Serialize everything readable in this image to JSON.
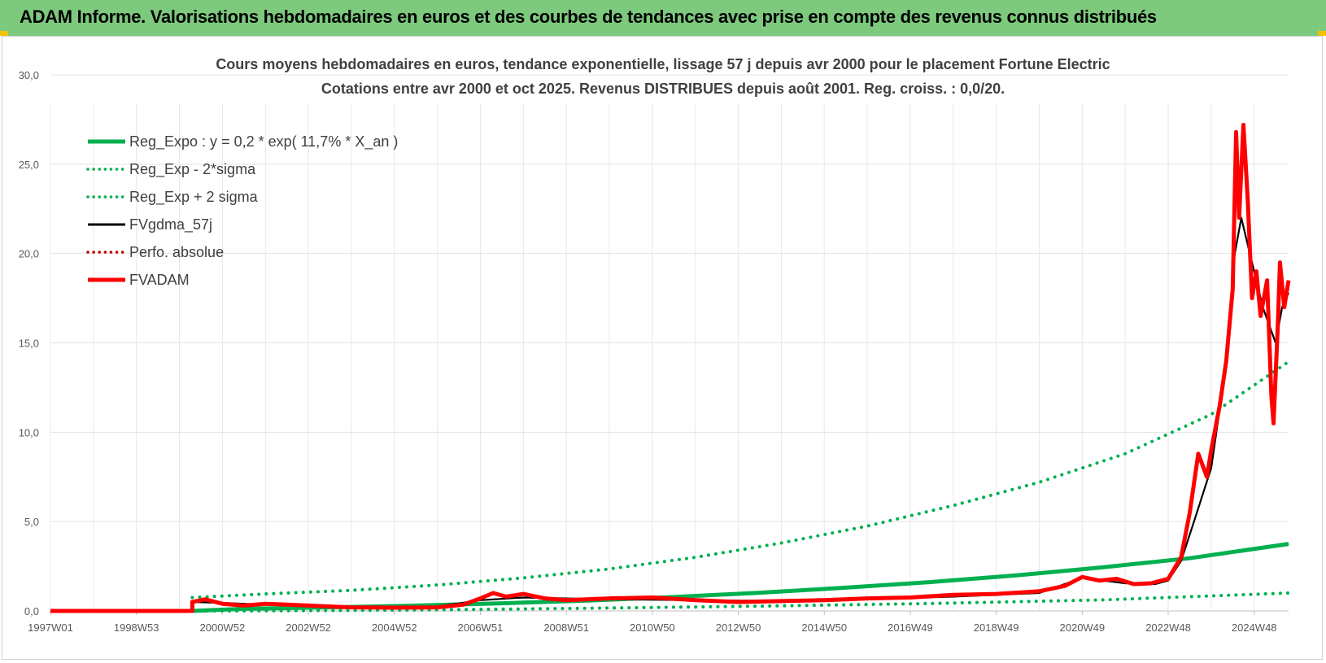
{
  "banner": {
    "title": "ADAM Informe. Valorisations hebdomadaires en euros et des courbes de tendances avec prise en compte des revenus connus distribués"
  },
  "chart_data": {
    "type": "line",
    "title": "Cours moyens hebdomadaires en euros, tendance exponentielle, lissage 57 j depuis avr 2000 pour le placement Fortune Electric",
    "subtitle": "Cotations entre avr 2000 et oct 2025. Revenus DISTRIBUES depuis août 2001. Reg. croiss. : 0,0/20.",
    "xlabel": "",
    "ylabel": "",
    "ylim": [
      0,
      30
    ],
    "xlim": [
      1997.0,
      2025.8
    ],
    "y_ticks": [
      "0,0",
      "5,0",
      "10,0",
      "15,0",
      "20,0",
      "25,0",
      "30,0"
    ],
    "x_ticks": [
      {
        "label": "1997W01",
        "x": 1997.0
      },
      {
        "label": "1998W53",
        "x": 1999.0
      },
      {
        "label": "2000W52",
        "x": 2001.0
      },
      {
        "label": "2002W52",
        "x": 2003.0
      },
      {
        "label": "2004W52",
        "x": 2005.0
      },
      {
        "label": "2006W51",
        "x": 2007.0
      },
      {
        "label": "2008W51",
        "x": 2009.0
      },
      {
        "label": "2010W50",
        "x": 2011.0
      },
      {
        "label": "2012W50",
        "x": 2013.0
      },
      {
        "label": "2014W50",
        "x": 2015.0
      },
      {
        "label": "2016W49",
        "x": 2017.0
      },
      {
        "label": "2018W49",
        "x": 2019.0
      },
      {
        "label": "2020W49",
        "x": 2021.0
      },
      {
        "label": "2022W48",
        "x": 2023.0
      },
      {
        "label": "2024W48",
        "x": 2025.0
      }
    ],
    "grid": true,
    "legend_position": "top-left",
    "series": [
      {
        "name": "Reg_Expo : y = 0,2 * exp( 11,7% *  X_an )",
        "color": "#00b050",
        "style": "solid-thick",
        "points": [
          [
            2000.3,
            0.0
          ],
          [
            2001.5,
            0.12
          ],
          [
            2003.5,
            0.2
          ],
          [
            2005.5,
            0.3
          ],
          [
            2007.5,
            0.43
          ],
          [
            2009.5,
            0.58
          ],
          [
            2011.5,
            0.78
          ],
          [
            2013.5,
            1.02
          ],
          [
            2015.5,
            1.3
          ],
          [
            2017.5,
            1.62
          ],
          [
            2019.5,
            2.0
          ],
          [
            2021.5,
            2.45
          ],
          [
            2023.5,
            2.95
          ],
          [
            2025.8,
            3.75
          ]
        ]
      },
      {
        "name": "Reg_Exp - 2*sigma",
        "color": "#00b050",
        "style": "dotted",
        "points": [
          [
            2000.3,
            0.0
          ],
          [
            2001.5,
            0.0
          ],
          [
            2005.5,
            0.05
          ],
          [
            2009.5,
            0.15
          ],
          [
            2013.5,
            0.27
          ],
          [
            2017.5,
            0.42
          ],
          [
            2021.5,
            0.62
          ],
          [
            2025.8,
            1.0
          ]
        ]
      },
      {
        "name": "Reg_Exp + 2 sigma",
        "color": "#00b050",
        "style": "dotted",
        "points": [
          [
            2000.3,
            0.75
          ],
          [
            2002.0,
            0.95
          ],
          [
            2004.0,
            1.15
          ],
          [
            2006.0,
            1.45
          ],
          [
            2008.0,
            1.85
          ],
          [
            2010.0,
            2.35
          ],
          [
            2012.0,
            3.0
          ],
          [
            2014.0,
            3.8
          ],
          [
            2016.0,
            4.75
          ],
          [
            2018.0,
            5.9
          ],
          [
            2020.0,
            7.2
          ],
          [
            2022.0,
            8.8
          ],
          [
            2024.0,
            11.0
          ],
          [
            2025.8,
            13.95
          ]
        ]
      },
      {
        "name": "FVgdma_57j",
        "color": "#000000",
        "style": "solid",
        "points": [
          [
            2000.3,
            0.5
          ],
          [
            2001.0,
            0.45
          ],
          [
            2002.0,
            0.35
          ],
          [
            2004.0,
            0.2
          ],
          [
            2006.0,
            0.25
          ],
          [
            2007.0,
            0.6
          ],
          [
            2008.0,
            0.75
          ],
          [
            2010.0,
            0.65
          ],
          [
            2012.0,
            0.6
          ],
          [
            2014.0,
            0.55
          ],
          [
            2016.0,
            0.65
          ],
          [
            2018.0,
            0.8
          ],
          [
            2020.0,
            1.0
          ],
          [
            2021.0,
            1.85
          ],
          [
            2022.0,
            1.55
          ],
          [
            2022.7,
            1.5
          ],
          [
            2023.0,
            1.7
          ],
          [
            2023.3,
            2.8
          ],
          [
            2023.6,
            5.0
          ],
          [
            2024.0,
            8.0
          ],
          [
            2024.3,
            13.0
          ],
          [
            2024.55,
            20.0
          ],
          [
            2024.7,
            22.0
          ],
          [
            2024.9,
            20.0
          ],
          [
            2025.2,
            17.0
          ],
          [
            2025.5,
            15.0
          ],
          [
            2025.65,
            17.0
          ],
          [
            2025.8,
            17.8
          ]
        ]
      },
      {
        "name": "Perfo. absolue",
        "color": "#c00000",
        "style": "dotted",
        "points": []
      },
      {
        "name": "FVADAM",
        "color": "#ff0000",
        "style": "solid-thick",
        "points": [
          [
            1997.0,
            0.0
          ],
          [
            2000.3,
            0.0
          ],
          [
            2000.3,
            0.5
          ],
          [
            2000.6,
            0.65
          ],
          [
            2001.0,
            0.4
          ],
          [
            2001.5,
            0.3
          ],
          [
            2002.0,
            0.4
          ],
          [
            2002.5,
            0.35
          ],
          [
            2003.0,
            0.3
          ],
          [
            2004.0,
            0.2
          ],
          [
            2005.0,
            0.18
          ],
          [
            2006.0,
            0.2
          ],
          [
            2006.6,
            0.35
          ],
          [
            2007.0,
            0.7
          ],
          [
            2007.3,
            1.0
          ],
          [
            2007.6,
            0.8
          ],
          [
            2008.0,
            0.95
          ],
          [
            2008.5,
            0.7
          ],
          [
            2009.0,
            0.6
          ],
          [
            2010.0,
            0.7
          ],
          [
            2011.0,
            0.75
          ],
          [
            2012.0,
            0.6
          ],
          [
            2013.0,
            0.5
          ],
          [
            2014.0,
            0.55
          ],
          [
            2015.0,
            0.6
          ],
          [
            2016.0,
            0.7
          ],
          [
            2017.0,
            0.75
          ],
          [
            2018.0,
            0.9
          ],
          [
            2019.0,
            0.95
          ],
          [
            2020.0,
            1.1
          ],
          [
            2020.6,
            1.4
          ],
          [
            2021.0,
            1.9
          ],
          [
            2021.4,
            1.7
          ],
          [
            2021.8,
            1.8
          ],
          [
            2022.2,
            1.5
          ],
          [
            2022.6,
            1.55
          ],
          [
            2023.0,
            1.8
          ],
          [
            2023.3,
            3.0
          ],
          [
            2023.5,
            5.5
          ],
          [
            2023.7,
            8.8
          ],
          [
            2023.9,
            7.5
          ],
          [
            2024.0,
            9.0
          ],
          [
            2024.2,
            11.5
          ],
          [
            2024.35,
            14.0
          ],
          [
            2024.5,
            18.0
          ],
          [
            2024.58,
            26.8
          ],
          [
            2024.65,
            22.0
          ],
          [
            2024.75,
            27.2
          ],
          [
            2024.85,
            23.0
          ],
          [
            2024.95,
            17.5
          ],
          [
            2025.05,
            19.0
          ],
          [
            2025.15,
            16.5
          ],
          [
            2025.3,
            18.5
          ],
          [
            2025.4,
            12.0
          ],
          [
            2025.45,
            10.5
          ],
          [
            2025.55,
            16.0
          ],
          [
            2025.6,
            19.5
          ],
          [
            2025.7,
            17.0
          ],
          [
            2025.8,
            18.5
          ]
        ]
      }
    ]
  }
}
